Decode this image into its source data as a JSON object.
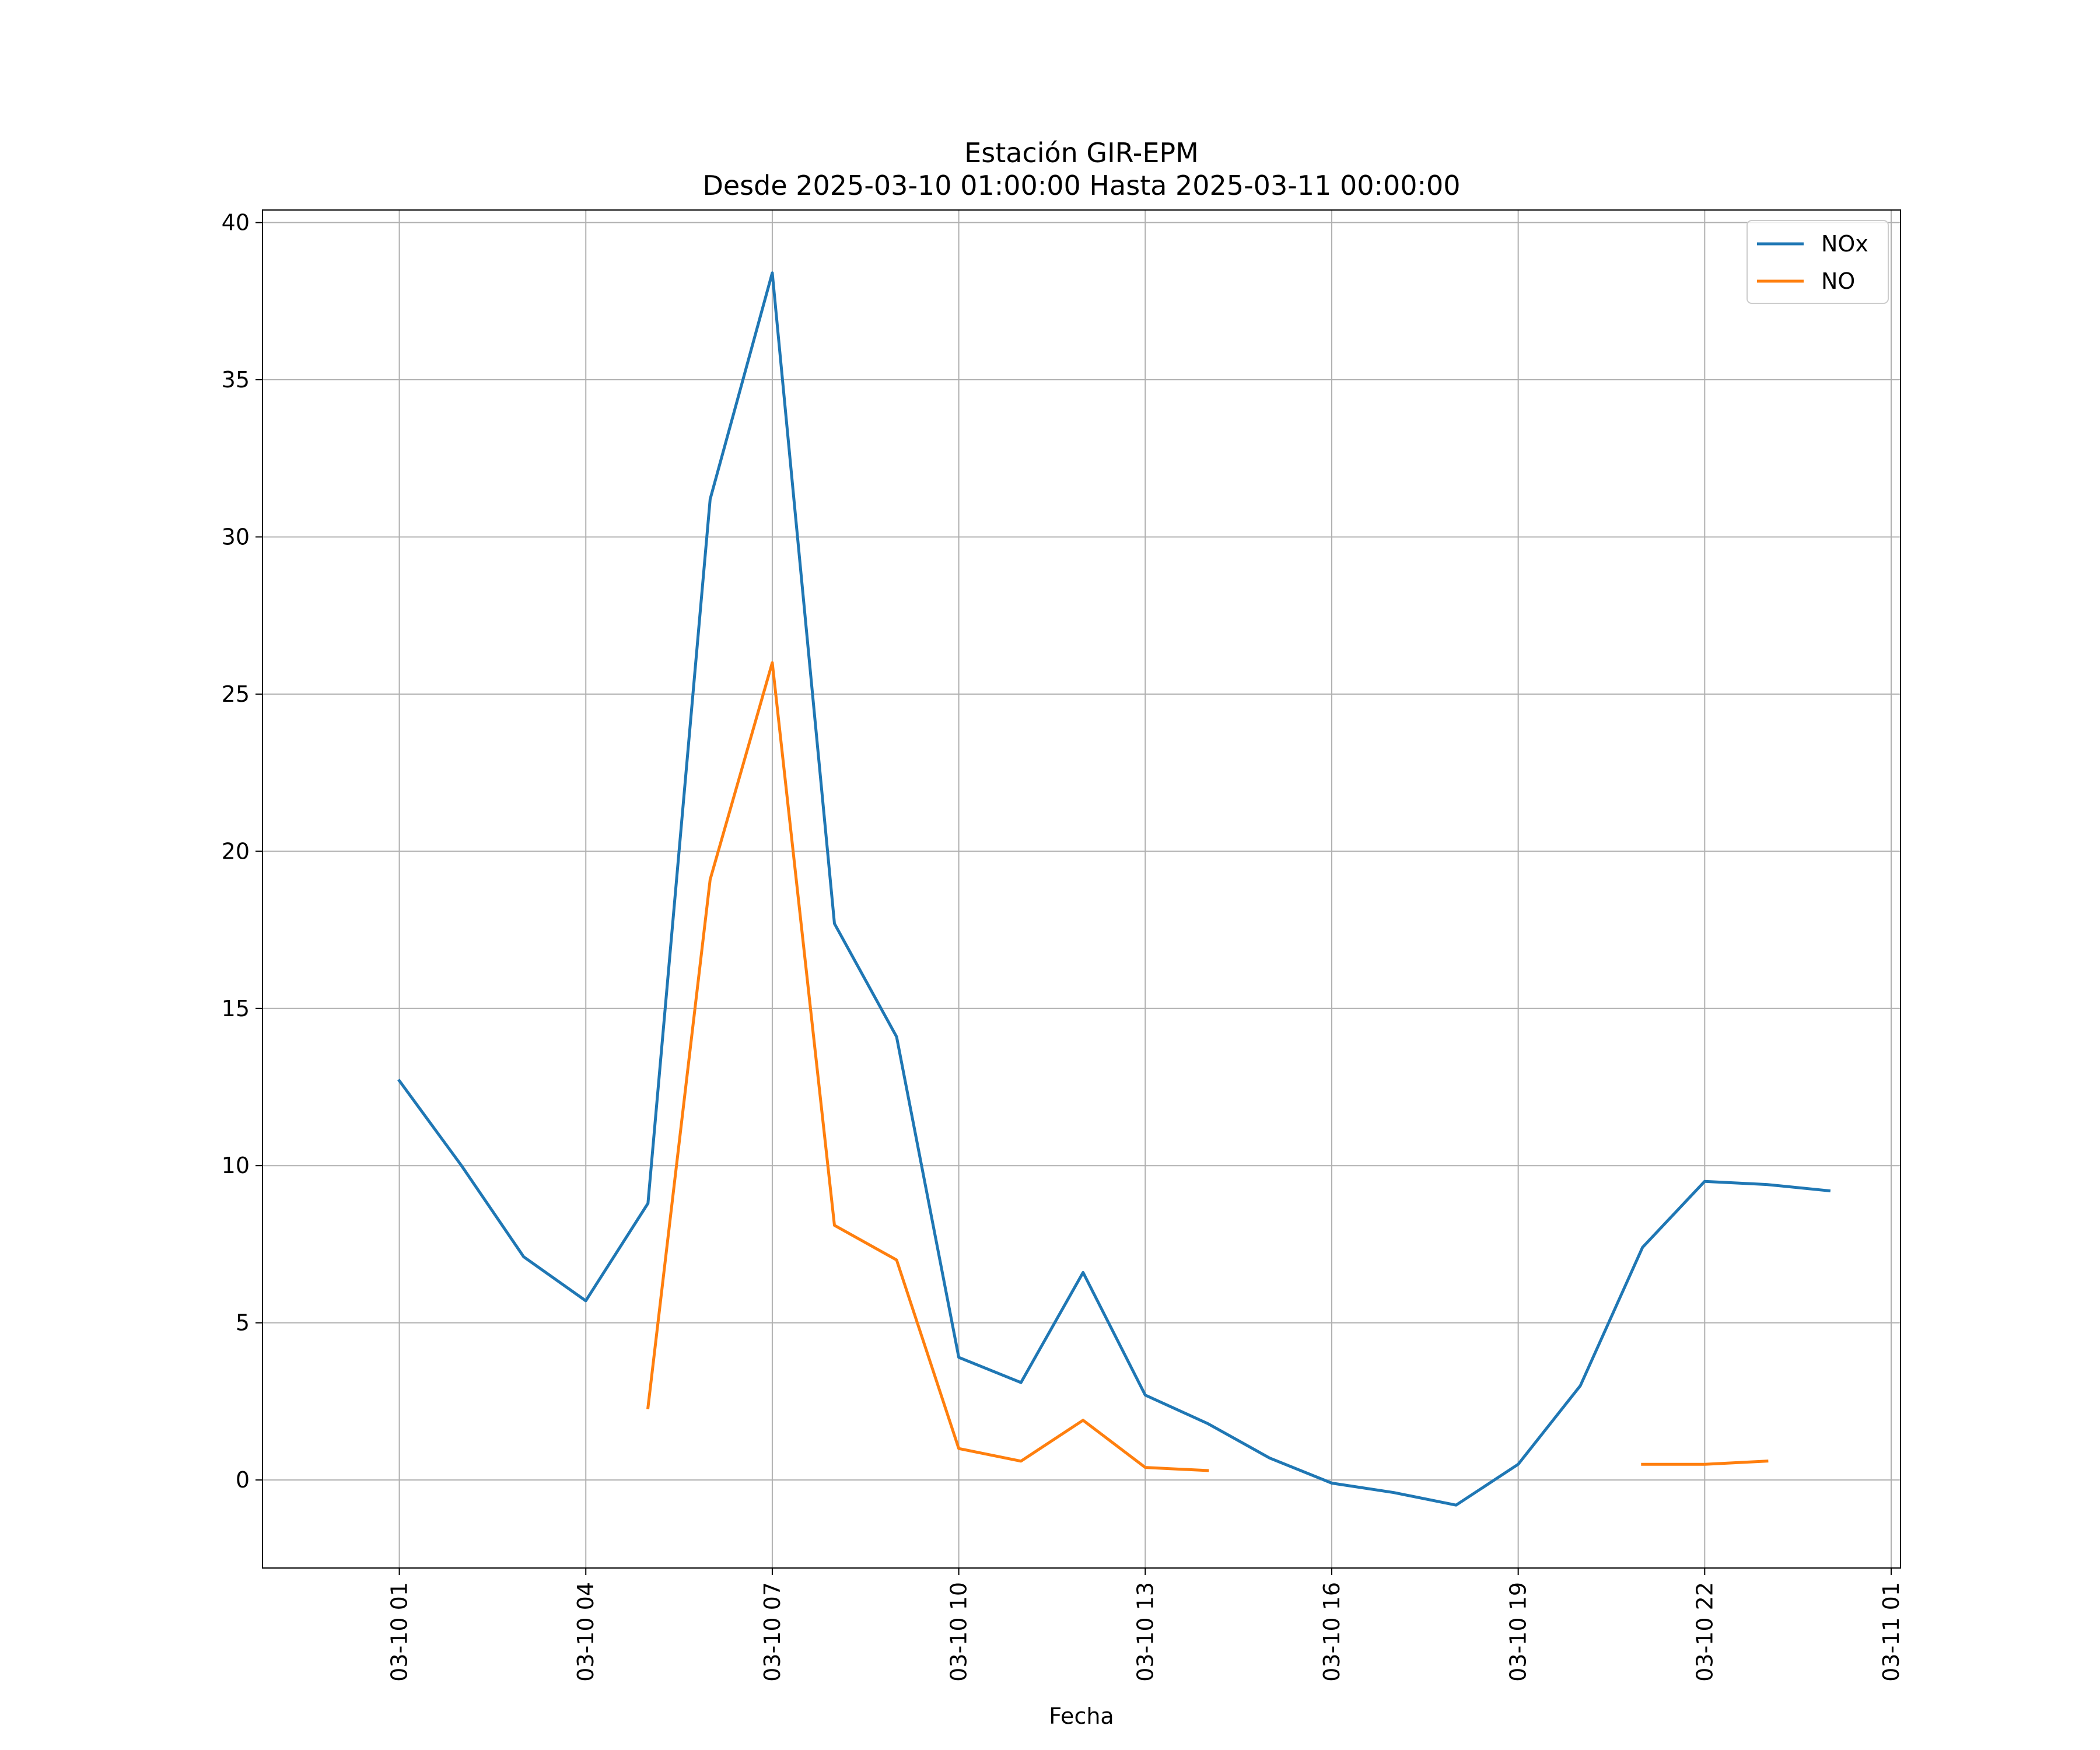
{
  "chart_data": {
    "type": "line",
    "title": "Estación GIR-EPM",
    "subtitle": "Desde 2025-03-10 01:00:00 Hasta 2025-03-11 00:00:00",
    "xlabel": "Fecha",
    "ylabel": "",
    "xlim": [
      "2025-03-10 00:00",
      "2025-03-11 01:00"
    ],
    "ylim": [
      -2.8,
      40.4
    ],
    "grid": true,
    "legend_position": "top-right",
    "x_ticks": [
      {
        "value": "2025-03-10 01:00",
        "label": "03-10 01"
      },
      {
        "value": "2025-03-10 04:00",
        "label": "03-10 04"
      },
      {
        "value": "2025-03-10 07:00",
        "label": "03-10 07"
      },
      {
        "value": "2025-03-10 10:00",
        "label": "03-10 10"
      },
      {
        "value": "2025-03-10 13:00",
        "label": "03-10 13"
      },
      {
        "value": "2025-03-10 16:00",
        "label": "03-10 16"
      },
      {
        "value": "2025-03-10 19:00",
        "label": "03-10 19"
      },
      {
        "value": "2025-03-10 22:00",
        "label": "03-10 22"
      },
      {
        "value": "2025-03-11 01:00",
        "label": "03-11 01"
      }
    ],
    "y_ticks": [
      {
        "value": 0,
        "label": "0"
      },
      {
        "value": 5,
        "label": "5"
      },
      {
        "value": 10,
        "label": "10"
      },
      {
        "value": 15,
        "label": "15"
      },
      {
        "value": 20,
        "label": "20"
      },
      {
        "value": 25,
        "label": "25"
      },
      {
        "value": 30,
        "label": "30"
      },
      {
        "value": 35,
        "label": "35"
      },
      {
        "value": 40,
        "label": "40"
      }
    ],
    "x": [
      "2025-03-10 01:00",
      "2025-03-10 02:00",
      "2025-03-10 03:00",
      "2025-03-10 04:00",
      "2025-03-10 05:00",
      "2025-03-10 06:00",
      "2025-03-10 07:00",
      "2025-03-10 08:00",
      "2025-03-10 09:00",
      "2025-03-10 10:00",
      "2025-03-10 11:00",
      "2025-03-10 12:00",
      "2025-03-10 13:00",
      "2025-03-10 14:00",
      "2025-03-10 15:00",
      "2025-03-10 16:00",
      "2025-03-10 17:00",
      "2025-03-10 18:00",
      "2025-03-10 19:00",
      "2025-03-10 20:00",
      "2025-03-10 21:00",
      "2025-03-10 22:00",
      "2025-03-10 23:00",
      "2025-03-11 00:00"
    ],
    "series": [
      {
        "name": "NOx",
        "color": "#1f77b4",
        "values": [
          12.7,
          10.0,
          7.1,
          5.7,
          8.8,
          31.2,
          38.4,
          17.7,
          14.1,
          3.9,
          3.1,
          6.6,
          2.7,
          1.8,
          0.7,
          -0.1,
          -0.4,
          -0.8,
          0.5,
          3.0,
          7.4,
          9.5,
          9.4,
          9.2
        ]
      },
      {
        "name": "NO",
        "color": "#ff7f0e",
        "values": [
          null,
          null,
          null,
          null,
          2.3,
          19.1,
          26.0,
          8.1,
          7.0,
          1.0,
          0.6,
          1.9,
          0.4,
          0.3,
          null,
          null,
          null,
          null,
          null,
          null,
          0.5,
          0.5,
          0.6,
          null
        ]
      }
    ]
  }
}
